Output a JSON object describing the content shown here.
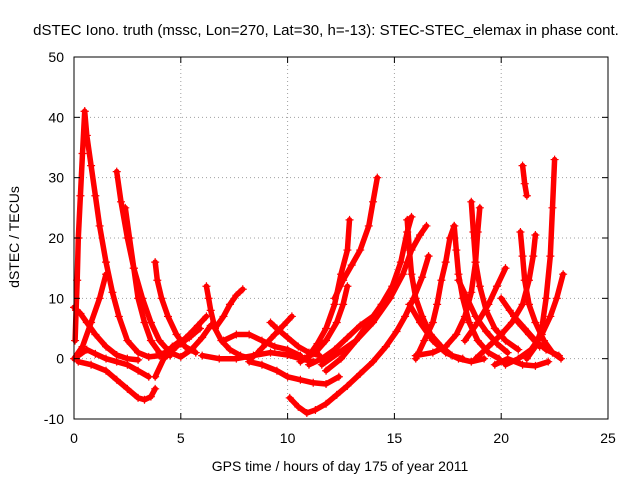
{
  "chart_data": {
    "type": "scatter",
    "title": "dSTEC Iono. truth (mssc, Lon=270, Lat=30, h=-13): STEC-STEC_elemax in phase cont.",
    "xlabel": "GPS time / hours of day 175 of year 2011",
    "ylabel": "dSTEC  / TECUs",
    "xlim": [
      0,
      25
    ],
    "ylim": [
      -10,
      50
    ],
    "xticks": [
      0,
      5,
      10,
      15,
      20,
      25
    ],
    "yticks": [
      -10,
      0,
      10,
      20,
      30,
      40,
      50
    ],
    "grid": true,
    "marker": "+",
    "color": "#ff0000",
    "series": [
      {
        "points": [
          [
            0.5,
            41
          ],
          [
            0.6,
            37
          ],
          [
            0.8,
            32
          ],
          [
            1.0,
            27
          ],
          [
            1.2,
            22
          ],
          [
            1.5,
            16
          ],
          [
            1.8,
            11
          ],
          [
            2.1,
            7
          ],
          [
            2.5,
            3
          ],
          [
            3.0,
            1
          ],
          [
            3.5,
            0.3
          ],
          [
            4.0,
            0.5
          ],
          [
            4.5,
            1.5
          ],
          [
            5.0,
            2.5
          ],
          [
            5.5,
            3.8
          ],
          [
            5.9,
            5
          ]
        ]
      },
      {
        "points": [
          [
            0.5,
            41
          ],
          [
            0.4,
            34
          ],
          [
            0.3,
            27
          ],
          [
            0.2,
            20
          ],
          [
            0.15,
            13
          ],
          [
            0.1,
            8
          ],
          [
            0.05,
            3
          ]
        ]
      },
      {
        "points": [
          [
            2.0,
            31
          ],
          [
            2.2,
            26
          ],
          [
            2.5,
            20
          ],
          [
            2.8,
            15
          ],
          [
            3.2,
            10
          ],
          [
            3.6,
            6
          ],
          [
            4.0,
            3
          ],
          [
            4.5,
            1
          ],
          [
            5.0,
            0.3
          ],
          [
            5.5,
            1.5
          ],
          [
            6.0,
            3.5
          ],
          [
            6.4,
            5.5
          ]
        ]
      },
      {
        "points": [
          [
            2.4,
            25
          ],
          [
            2.6,
            20
          ],
          [
            2.8,
            15
          ],
          [
            3.0,
            10
          ],
          [
            3.3,
            6
          ],
          [
            3.6,
            3
          ],
          [
            4.0,
            1
          ],
          [
            4.5,
            0.5
          ]
        ]
      },
      {
        "points": [
          [
            0.0,
            8.5
          ],
          [
            0.3,
            7.5
          ],
          [
            0.6,
            6
          ],
          [
            1.0,
            4
          ],
          [
            1.5,
            2
          ],
          [
            2.0,
            0.6
          ],
          [
            2.5,
            0
          ],
          [
            3.0,
            -0.2
          ]
        ]
      },
      {
        "points": [
          [
            0.2,
            -0.5
          ],
          [
            0.8,
            -1
          ],
          [
            1.5,
            -2
          ],
          [
            2.0,
            -3.5
          ],
          [
            2.5,
            -5
          ],
          [
            3.0,
            -6.5
          ],
          [
            3.3,
            -6.8
          ],
          [
            3.6,
            -6.3
          ],
          [
            3.8,
            -5
          ]
        ]
      },
      {
        "points": [
          [
            0.2,
            0.5
          ],
          [
            0.6,
            1.5
          ],
          [
            1.0,
            0.8
          ],
          [
            1.5,
            0
          ],
          [
            2.0,
            -0.5
          ],
          [
            2.5,
            -1
          ],
          [
            3.0,
            -2
          ],
          [
            3.5,
            -3
          ]
        ]
      },
      {
        "points": [
          [
            0.0,
            0
          ],
          [
            0.4,
            2
          ],
          [
            0.8,
            6
          ],
          [
            1.2,
            10
          ],
          [
            1.5,
            14
          ]
        ]
      },
      {
        "points": [
          [
            3.8,
            16
          ],
          [
            3.9,
            13
          ],
          [
            4.1,
            10
          ],
          [
            4.4,
            7
          ],
          [
            4.8,
            4
          ],
          [
            5.2,
            2
          ],
          [
            5.7,
            1
          ]
        ]
      },
      {
        "points": [
          [
            3.8,
            -3
          ],
          [
            4.2,
            0
          ],
          [
            4.6,
            2
          ],
          [
            5.0,
            3
          ],
          [
            5.4,
            3.5
          ]
        ]
      },
      {
        "points": [
          [
            4.2,
            0
          ],
          [
            4.8,
            2
          ],
          [
            5.4,
            4
          ],
          [
            5.8,
            5.5
          ],
          [
            6.2,
            7
          ]
        ]
      },
      {
        "points": [
          [
            6.2,
            12
          ],
          [
            6.3,
            10
          ],
          [
            6.4,
            8
          ],
          [
            6.6,
            5
          ],
          [
            6.9,
            3
          ],
          [
            7.3,
            1.5
          ],
          [
            7.8,
            0.5
          ],
          [
            8.3,
            0
          ]
        ]
      },
      {
        "points": [
          [
            6.6,
            5
          ],
          [
            7.0,
            7
          ],
          [
            7.3,
            9
          ],
          [
            7.6,
            10.5
          ],
          [
            7.9,
            11.5
          ]
        ]
      },
      {
        "points": [
          [
            6.0,
            0.5
          ],
          [
            6.8,
            0
          ],
          [
            7.6,
            0
          ],
          [
            8.4,
            0.5
          ],
          [
            9.2,
            1
          ],
          [
            10.0,
            0.6
          ],
          [
            10.6,
            0
          ],
          [
            11.2,
            -0.5
          ]
        ]
      },
      {
        "points": [
          [
            7.0,
            3
          ],
          [
            7.6,
            4
          ],
          [
            8.2,
            4
          ],
          [
            8.8,
            3
          ],
          [
            9.4,
            2
          ],
          [
            10.0,
            1.5
          ],
          [
            10.6,
            0.5
          ]
        ]
      },
      {
        "points": [
          [
            9.2,
            6
          ],
          [
            9.5,
            5
          ],
          [
            10.0,
            3.5
          ],
          [
            10.5,
            2
          ],
          [
            11.0,
            1
          ],
          [
            11.5,
            0.5
          ]
        ]
      },
      {
        "points": [
          [
            8.6,
            1
          ],
          [
            9.0,
            2.5
          ],
          [
            9.4,
            4
          ],
          [
            9.8,
            5.5
          ],
          [
            10.2,
            7
          ]
        ]
      },
      {
        "points": [
          [
            8.2,
            -0.5
          ],
          [
            8.8,
            -1
          ],
          [
            9.5,
            -2
          ],
          [
            10.0,
            -3
          ],
          [
            10.6,
            -3.5
          ],
          [
            11.2,
            -4
          ],
          [
            11.8,
            -4.2
          ],
          [
            12.4,
            -3
          ]
        ]
      },
      {
        "points": [
          [
            10.1,
            -6.5
          ],
          [
            10.5,
            -8
          ],
          [
            10.9,
            -9
          ],
          [
            11.3,
            -8.5
          ],
          [
            11.8,
            -7.5
          ],
          [
            12.3,
            -6
          ],
          [
            12.8,
            -4.5
          ],
          [
            13.4,
            -2.5
          ],
          [
            14.0,
            -0.5
          ],
          [
            14.6,
            2
          ],
          [
            15.1,
            4.5
          ],
          [
            15.5,
            7
          ],
          [
            15.9,
            10
          ],
          [
            16.3,
            13.5
          ],
          [
            16.6,
            17
          ]
        ]
      },
      {
        "points": [
          [
            10.6,
            -0.5
          ],
          [
            11.0,
            0.5
          ],
          [
            11.4,
            2.5
          ],
          [
            11.8,
            5
          ],
          [
            12.2,
            9
          ],
          [
            12.5,
            14
          ],
          [
            12.8,
            18
          ],
          [
            12.9,
            23
          ]
        ]
      },
      {
        "points": [
          [
            10.8,
            0
          ],
          [
            11.3,
            1
          ],
          [
            11.8,
            3
          ],
          [
            12.3,
            6
          ],
          [
            12.6,
            9
          ],
          [
            12.8,
            12
          ]
        ]
      },
      {
        "points": [
          [
            11.0,
            -1
          ],
          [
            11.6,
            0
          ],
          [
            12.2,
            1.5
          ],
          [
            12.8,
            3.5
          ],
          [
            13.4,
            5.5
          ],
          [
            14.0,
            7
          ]
        ]
      },
      {
        "points": [
          [
            12.2,
            10
          ],
          [
            12.6,
            13
          ],
          [
            13.0,
            15.5
          ],
          [
            13.4,
            18
          ],
          [
            13.8,
            22
          ],
          [
            14.0,
            26
          ],
          [
            14.2,
            30
          ]
        ]
      },
      {
        "points": [
          [
            11.8,
            -2
          ],
          [
            12.5,
            0
          ],
          [
            13.2,
            3
          ],
          [
            13.8,
            6
          ],
          [
            14.4,
            9
          ],
          [
            14.9,
            12
          ],
          [
            15.3,
            16
          ],
          [
            15.6,
            21
          ],
          [
            15.8,
            23.5
          ]
        ]
      },
      {
        "points": [
          [
            11.6,
            -1
          ],
          [
            12.4,
            1
          ],
          [
            13.2,
            3
          ],
          [
            14.0,
            6
          ],
          [
            14.8,
            10
          ],
          [
            15.4,
            14
          ],
          [
            15.8,
            18
          ],
          [
            16.2,
            20.5
          ],
          [
            16.5,
            22
          ]
        ]
      },
      {
        "points": [
          [
            15.6,
            23
          ],
          [
            15.7,
            18
          ],
          [
            15.8,
            14
          ],
          [
            16.0,
            10
          ],
          [
            16.3,
            7
          ],
          [
            16.7,
            4
          ],
          [
            17.2,
            2
          ],
          [
            17.7,
            0.5
          ],
          [
            18.2,
            0
          ]
        ]
      },
      {
        "points": [
          [
            15.7,
            9
          ],
          [
            16.2,
            6
          ],
          [
            16.8,
            3
          ],
          [
            17.4,
            1
          ],
          [
            18.0,
            0
          ],
          [
            18.6,
            -0.5
          ],
          [
            19.2,
            0
          ]
        ]
      },
      {
        "points": [
          [
            16.0,
            0.5
          ],
          [
            16.8,
            1
          ],
          [
            17.4,
            2
          ],
          [
            17.9,
            4
          ],
          [
            18.3,
            7
          ],
          [
            18.6,
            11
          ],
          [
            18.8,
            16
          ],
          [
            18.9,
            21
          ],
          [
            19.0,
            25
          ]
        ]
      },
      {
        "points": [
          [
            17.8,
            22
          ],
          [
            17.9,
            18
          ],
          [
            18.0,
            14
          ],
          [
            18.2,
            10
          ],
          [
            18.5,
            6
          ],
          [
            18.9,
            3
          ],
          [
            19.4,
            1
          ],
          [
            19.9,
            0
          ]
        ]
      },
      {
        "points": [
          [
            18.0,
            13
          ],
          [
            18.4,
            10
          ],
          [
            18.8,
            7
          ],
          [
            19.3,
            4.5
          ],
          [
            19.8,
            2.5
          ],
          [
            20.3,
            1
          ]
        ]
      },
      {
        "points": [
          [
            18.6,
            26
          ],
          [
            18.7,
            21
          ],
          [
            18.8,
            16
          ],
          [
            19.0,
            12
          ],
          [
            19.3,
            8
          ],
          [
            19.7,
            5
          ],
          [
            20.2,
            3
          ],
          [
            20.8,
            1.5
          ]
        ]
      },
      {
        "points": [
          [
            18.3,
            3
          ],
          [
            18.9,
            6
          ],
          [
            19.4,
            9
          ],
          [
            19.8,
            12
          ],
          [
            20.2,
            15
          ]
        ]
      },
      {
        "points": [
          [
            18.8,
            0
          ],
          [
            19.4,
            2
          ],
          [
            20.0,
            4
          ],
          [
            20.5,
            6
          ],
          [
            21.0,
            9
          ],
          [
            21.3,
            13
          ],
          [
            21.5,
            17
          ],
          [
            21.6,
            20.5
          ]
        ]
      },
      {
        "points": [
          [
            20.9,
            21
          ],
          [
            21.0,
            17
          ],
          [
            21.1,
            13
          ],
          [
            21.3,
            9
          ],
          [
            21.6,
            6
          ],
          [
            22.0,
            3
          ],
          [
            22.4,
            1
          ],
          [
            22.8,
            0
          ]
        ]
      },
      {
        "points": [
          [
            20.2,
            -1
          ],
          [
            20.8,
            0
          ],
          [
            21.4,
            1.5
          ],
          [
            21.9,
            4
          ],
          [
            22.3,
            7
          ],
          [
            22.6,
            10
          ],
          [
            22.9,
            14
          ]
        ]
      },
      {
        "points": [
          [
            21.2,
            0
          ],
          [
            21.6,
            2
          ],
          [
            21.9,
            5
          ],
          [
            22.1,
            10
          ],
          [
            22.3,
            17
          ],
          [
            22.4,
            25
          ],
          [
            22.5,
            33
          ]
        ]
      },
      {
        "points": [
          [
            21.0,
            32
          ],
          [
            21.1,
            29
          ],
          [
            21.2,
            27
          ]
        ]
      },
      {
        "points": [
          [
            16.0,
            0
          ],
          [
            16.4,
            3
          ],
          [
            16.8,
            6
          ],
          [
            17.0,
            9
          ],
          [
            17.2,
            13
          ],
          [
            17.4,
            16
          ],
          [
            17.6,
            20
          ],
          [
            17.8,
            22
          ]
        ]
      },
      {
        "points": [
          [
            19.7,
            -1
          ],
          [
            20.3,
            0
          ],
          [
            21.0,
            -1
          ],
          [
            21.6,
            -1.2
          ],
          [
            22.2,
            -0.5
          ]
        ]
      },
      {
        "points": [
          [
            20.6,
            7
          ],
          [
            21.1,
            5
          ],
          [
            21.6,
            3
          ],
          [
            22.1,
            1.5
          ],
          [
            22.7,
            0.5
          ]
        ]
      },
      {
        "points": [
          [
            20.0,
            10
          ],
          [
            20.4,
            8
          ],
          [
            20.8,
            6
          ],
          [
            21.3,
            4
          ],
          [
            21.8,
            2
          ]
        ]
      }
    ]
  }
}
